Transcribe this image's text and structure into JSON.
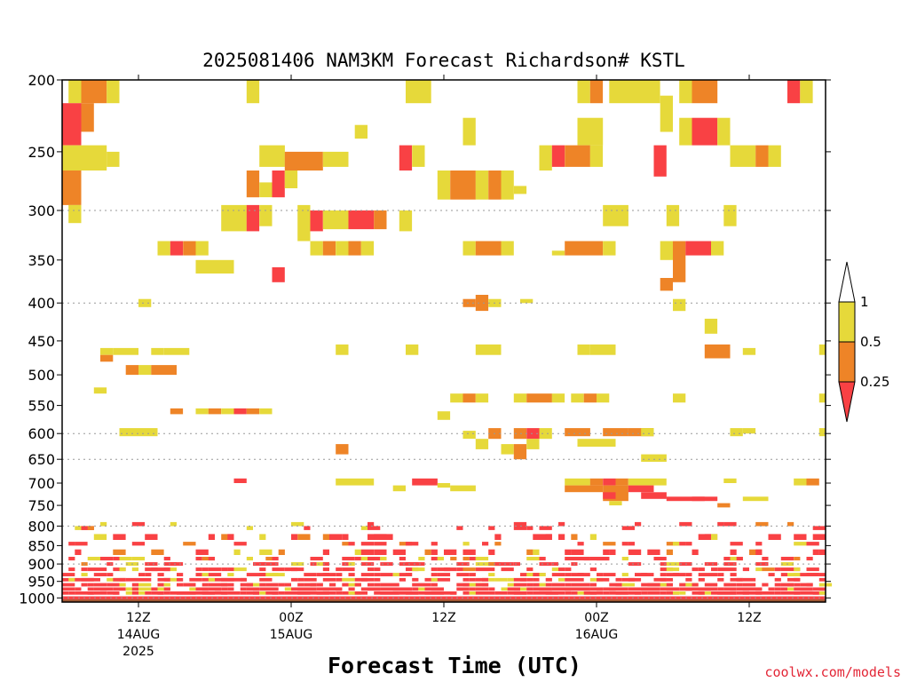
{
  "chart_data": {
    "type": "heatmap",
    "title": "2025081406 NAM3KM Forecast Richardson# KSTL",
    "xlabel": "Forecast Time (UTC)",
    "ylabel": "",
    "credit": "coolwx.com/models",
    "y_axis": {
      "scale": "pressure (hPa), inverted",
      "range": [
        1013,
        200
      ],
      "ticks": [
        "200",
        "250",
        "300",
        "350",
        "400",
        "450",
        "500",
        "550",
        "600",
        "650",
        "700",
        "750",
        "800",
        "850",
        "900",
        "950",
        "1000"
      ],
      "dotted_grid_levels": [
        300,
        400,
        600,
        650,
        800,
        900,
        1000
      ]
    },
    "x_axis": {
      "unit": "forecast hour from 2025-08-14 06Z",
      "range": [
        0,
        60
      ],
      "ticks": [
        {
          "hour": 6,
          "label": "12Z",
          "date": "14AUG",
          "year": "2025"
        },
        {
          "hour": 18,
          "label": "00Z",
          "date": "15AUG",
          "year": ""
        },
        {
          "hour": 30,
          "label": "12Z",
          "date": "",
          "year": ""
        },
        {
          "hour": 42,
          "label": "00Z",
          "date": "16AUG",
          "year": ""
        },
        {
          "hour": 54,
          "label": "12Z",
          "date": "",
          "year": ""
        }
      ]
    },
    "legend": {
      "placement": "right",
      "labels": [
        "1",
        "0.5",
        "0.25"
      ],
      "bins": [
        {
          "range": "< 0.25",
          "color": "#f94144"
        },
        {
          "range": "0.25 - 0.5",
          "color": "#ee8427"
        },
        {
          "range": "0.5 - 1",
          "color": "#e6d93a"
        },
        {
          "range": "> 1",
          "color": "#ffffff"
        }
      ]
    },
    "ground_color": "#a0522d",
    "cells_note": "each cell = [forecast_hour_start, hours_wide, p_top_hPa, p_bottom_hPa, bin] ; bin 0 = <0.25 red, 1 = 0.25-0.5 orange, 2 = 0.5-1 yellow",
    "cells": [
      [
        0.5,
        1,
        200,
        215,
        2
      ],
      [
        1.5,
        2,
        200,
        215,
        1
      ],
      [
        3.5,
        1,
        200,
        215,
        2
      ],
      [
        0,
        1.5,
        215,
        245,
        0
      ],
      [
        1.5,
        1,
        215,
        235,
        1
      ],
      [
        0,
        3.5,
        245,
        265,
        2
      ],
      [
        3.5,
        1,
        250,
        262,
        2
      ],
      [
        0,
        1.5,
        265,
        295,
        1
      ],
      [
        0.5,
        1,
        295,
        312,
        2
      ],
      [
        14.5,
        1,
        200,
        215,
        2
      ],
      [
        27,
        2,
        200,
        215,
        2
      ],
      [
        31.5,
        1,
        225,
        245,
        2
      ],
      [
        23,
        1,
        230,
        240,
        2
      ],
      [
        15.5,
        2,
        245,
        262,
        2
      ],
      [
        17.5,
        3,
        250,
        265,
        1
      ],
      [
        20.5,
        2,
        250,
        262,
        2
      ],
      [
        26.5,
        1,
        245,
        265,
        0
      ],
      [
        27.5,
        1,
        245,
        262,
        2
      ],
      [
        14.5,
        1,
        265,
        288,
        1
      ],
      [
        15.5,
        1,
        275,
        288,
        2
      ],
      [
        16.5,
        1,
        265,
        288,
        0
      ],
      [
        17.5,
        1,
        265,
        280,
        2
      ],
      [
        12.5,
        2,
        295,
        320,
        2
      ],
      [
        14.5,
        1,
        295,
        320,
        0
      ],
      [
        15.5,
        1,
        295,
        315,
        2
      ],
      [
        18.5,
        1,
        295,
        330,
        2
      ],
      [
        19.5,
        1,
        300,
        320,
        0
      ],
      [
        20.5,
        2,
        300,
        318,
        2
      ],
      [
        22.5,
        2,
        300,
        318,
        0
      ],
      [
        24.5,
        1,
        300,
        318,
        1
      ],
      [
        26.5,
        1,
        300,
        320,
        2
      ],
      [
        29.5,
        1,
        265,
        290,
        2
      ],
      [
        30.5,
        2,
        265,
        290,
        1
      ],
      [
        32.5,
        1,
        265,
        290,
        2
      ],
      [
        33.5,
        1,
        265,
        290,
        1
      ],
      [
        34.5,
        1,
        265,
        290,
        2
      ],
      [
        35.5,
        1,
        278,
        285,
        2
      ],
      [
        7.5,
        1,
        330,
        345,
        2
      ],
      [
        8.5,
        1,
        330,
        345,
        0
      ],
      [
        9.5,
        1,
        330,
        345,
        1
      ],
      [
        10.5,
        1,
        330,
        345,
        2
      ],
      [
        19.5,
        1,
        330,
        345,
        2
      ],
      [
        20.5,
        1,
        330,
        345,
        1
      ],
      [
        21.5,
        1,
        330,
        345,
        2
      ],
      [
        22.5,
        1,
        330,
        345,
        1
      ],
      [
        23.5,
        1,
        330,
        345,
        2
      ],
      [
        10.5,
        3,
        350,
        365,
        2
      ],
      [
        16.5,
        1,
        358,
        375,
        0
      ],
      [
        31.5,
        1,
        330,
        345,
        2
      ],
      [
        32.5,
        2,
        330,
        345,
        1
      ],
      [
        34.5,
        1,
        330,
        345,
        2
      ],
      [
        6,
        1,
        395,
        405,
        2
      ],
      [
        3,
        1,
        460,
        470,
        2
      ],
      [
        3,
        1,
        470,
        480,
        1
      ],
      [
        4,
        2,
        460,
        470,
        2
      ],
      [
        7,
        1,
        460,
        470,
        2
      ],
      [
        8,
        1,
        460,
        470,
        2
      ],
      [
        9,
        1,
        460,
        470,
        2
      ],
      [
        5,
        1,
        485,
        500,
        1
      ],
      [
        6,
        1,
        485,
        500,
        2
      ],
      [
        7,
        2,
        485,
        500,
        1
      ],
      [
        2.5,
        1,
        520,
        530,
        2
      ],
      [
        8.5,
        1,
        555,
        565,
        1
      ],
      [
        10.5,
        1,
        555,
        565,
        2
      ],
      [
        11.5,
        1,
        555,
        565,
        1
      ],
      [
        12.5,
        1,
        555,
        565,
        2
      ],
      [
        13.5,
        1,
        555,
        565,
        0
      ],
      [
        14.5,
        1,
        555,
        565,
        1
      ],
      [
        15.5,
        1,
        555,
        565,
        2
      ],
      [
        4.5,
        3,
        590,
        605,
        2
      ],
      [
        21.5,
        1,
        455,
        470,
        2
      ],
      [
        27,
        1,
        455,
        470,
        2
      ],
      [
        32.5,
        2,
        455,
        470,
        2
      ],
      [
        31.5,
        1,
        395,
        405,
        1
      ],
      [
        32.5,
        1,
        390,
        410,
        1
      ],
      [
        33.5,
        1,
        395,
        405,
        2
      ],
      [
        36,
        1,
        395,
        400,
        2
      ],
      [
        30.5,
        1,
        530,
        545,
        2
      ],
      [
        31.5,
        1,
        530,
        545,
        1
      ],
      [
        32.5,
        1,
        530,
        545,
        2
      ],
      [
        29.5,
        1,
        560,
        575,
        2
      ],
      [
        35.5,
        1,
        530,
        545,
        2
      ],
      [
        36.5,
        2,
        530,
        545,
        1
      ],
      [
        38.5,
        1,
        530,
        545,
        2
      ],
      [
        21.5,
        1,
        620,
        640,
        1
      ],
      [
        31.5,
        1,
        595,
        610,
        2
      ],
      [
        32.5,
        1,
        610,
        630,
        2
      ],
      [
        33.5,
        1,
        590,
        610,
        1
      ],
      [
        35.5,
        1,
        590,
        610,
        1
      ],
      [
        36.5,
        1,
        590,
        610,
        0
      ],
      [
        37.5,
        1,
        590,
        610,
        2
      ],
      [
        34.5,
        1,
        620,
        640,
        2
      ],
      [
        35.5,
        1,
        620,
        650,
        1
      ],
      [
        36.5,
        1,
        610,
        630,
        2
      ],
      [
        21.5,
        3,
        690,
        705,
        2
      ],
      [
        27.5,
        2,
        690,
        705,
        0
      ],
      [
        29.5,
        1,
        700,
        710,
        2
      ],
      [
        13.5,
        1,
        690,
        700,
        0
      ],
      [
        30.5,
        2,
        705,
        718,
        2
      ],
      [
        26,
        1,
        705,
        718,
        2
      ],
      [
        43,
        4,
        200,
        215,
        2
      ],
      [
        40.5,
        1,
        200,
        215,
        2
      ],
      [
        41.5,
        1,
        200,
        215,
        1
      ],
      [
        47,
        1,
        210,
        235,
        2
      ],
      [
        48.5,
        1,
        200,
        215,
        2
      ],
      [
        49.5,
        2,
        200,
        215,
        1
      ],
      [
        40.5,
        2,
        225,
        245,
        2
      ],
      [
        48.5,
        1,
        225,
        245,
        2
      ],
      [
        49.5,
        2,
        225,
        245,
        0
      ],
      [
        51.5,
        1,
        225,
        245,
        2
      ],
      [
        37.5,
        1,
        245,
        265,
        2
      ],
      [
        38.5,
        1,
        245,
        262,
        0
      ],
      [
        39.5,
        2,
        245,
        262,
        1
      ],
      [
        41.5,
        1,
        245,
        262,
        2
      ],
      [
        46.5,
        1,
        245,
        270,
        0
      ],
      [
        52.5,
        2,
        245,
        262,
        2
      ],
      [
        54.5,
        1,
        245,
        262,
        1
      ],
      [
        55.5,
        1,
        245,
        262,
        2
      ],
      [
        42.5,
        2,
        295,
        315,
        2
      ],
      [
        47.5,
        1,
        295,
        315,
        2
      ],
      [
        52,
        1,
        295,
        315,
        2
      ],
      [
        38.5,
        1,
        340,
        345,
        2
      ],
      [
        39.5,
        3,
        330,
        345,
        1
      ],
      [
        42.5,
        1,
        330,
        345,
        2
      ],
      [
        47,
        1,
        330,
        350,
        2
      ],
      [
        48,
        1,
        330,
        375,
        1
      ],
      [
        49,
        2,
        330,
        345,
        0
      ],
      [
        51,
        1,
        330,
        345,
        2
      ],
      [
        47,
        1,
        370,
        385,
        1
      ],
      [
        48,
        1,
        395,
        410,
        2
      ],
      [
        50.5,
        1,
        420,
        440,
        2
      ],
      [
        50.5,
        2,
        455,
        475,
        1
      ],
      [
        53.5,
        1,
        460,
        470,
        2
      ],
      [
        40.5,
        1,
        455,
        470,
        2
      ],
      [
        41.5,
        2,
        455,
        470,
        2
      ],
      [
        40,
        1,
        530,
        545,
        2
      ],
      [
        41,
        1,
        530,
        545,
        1
      ],
      [
        42,
        1,
        530,
        545,
        2
      ],
      [
        39.5,
        2,
        590,
        605,
        1
      ],
      [
        42.5,
        2,
        590,
        605,
        1
      ],
      [
        44.5,
        2,
        590,
        605,
        1
      ],
      [
        45.5,
        1,
        590,
        605,
        2
      ],
      [
        40.5,
        3,
        610,
        625,
        2
      ],
      [
        45.5,
        2,
        640,
        655,
        2
      ],
      [
        48,
        1,
        530,
        545,
        2
      ],
      [
        52.5,
        1,
        590,
        605,
        2
      ],
      [
        53.5,
        1,
        590,
        600,
        2
      ],
      [
        52,
        1,
        690,
        700,
        2
      ],
      [
        39.5,
        2,
        690,
        705,
        2
      ],
      [
        41.5,
        1,
        690,
        705,
        1
      ],
      [
        42.5,
        1,
        690,
        705,
        0
      ],
      [
        43.5,
        1,
        690,
        705,
        1
      ],
      [
        44.5,
        2,
        690,
        705,
        2
      ],
      [
        46.5,
        1,
        690,
        705,
        2
      ],
      [
        39.5,
        3,
        705,
        720,
        1
      ],
      [
        42.5,
        2,
        705,
        740,
        1
      ],
      [
        44.5,
        2,
        705,
        720,
        0
      ],
      [
        42.5,
        1,
        720,
        735,
        0
      ],
      [
        45.5,
        2,
        720,
        735,
        0
      ],
      [
        47.5,
        3,
        730,
        740,
        0
      ],
      [
        49.5,
        2,
        730,
        740,
        0
      ],
      [
        43,
        1,
        740,
        750,
        2
      ],
      [
        51.5,
        1,
        745,
        755,
        1
      ],
      [
        53.5,
        2,
        730,
        740,
        2
      ],
      [
        57,
        1,
        200,
        215,
        0
      ],
      [
        58,
        1,
        200,
        215,
        2
      ],
      [
        59.5,
        0.5,
        455,
        470,
        2
      ],
      [
        59.5,
        0.5,
        530,
        545,
        2
      ],
      [
        59.5,
        0.5,
        590,
        605,
        2
      ],
      [
        57.5,
        1,
        690,
        705,
        2
      ],
      [
        58.5,
        1,
        690,
        705,
        1
      ]
    ],
    "lowlevel_rows": {
      "bands_hPa": [
        [
          790,
          800
        ],
        [
          800,
          810
        ],
        [
          820,
          835
        ],
        [
          840,
          850
        ],
        [
          860,
          875
        ],
        [
          880,
          890
        ],
        [
          895,
          905
        ],
        [
          910,
          920
        ],
        [
          925,
          935
        ],
        [
          940,
          950
        ],
        [
          955,
          965
        ],
        [
          968,
          978
        ],
        [
          980,
          990
        ]
      ],
      "density_by_band": [
        0.08,
        0.12,
        0.15,
        0.2,
        0.25,
        0.3,
        0.35,
        0.45,
        0.55,
        0.6,
        0.7,
        0.8,
        0.9
      ]
    }
  }
}
